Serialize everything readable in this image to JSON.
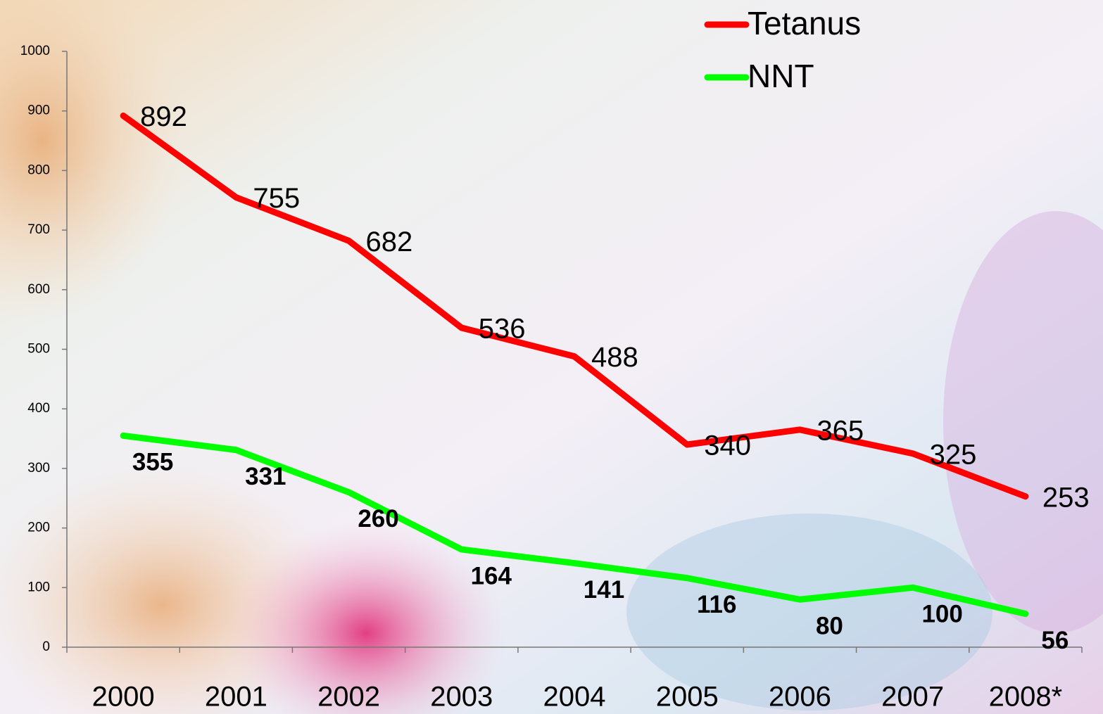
{
  "chart_data": {
    "type": "line",
    "categories": [
      "2000",
      "2001",
      "2002",
      "2003",
      "2004",
      "2005",
      "2006",
      "2007",
      "2008*"
    ],
    "series": [
      {
        "name": "Tetanus",
        "color": "#ff0000",
        "values": [
          892,
          755,
          682,
          536,
          488,
          340,
          365,
          325,
          253
        ]
      },
      {
        "name": "NNT",
        "color": "#00ff00",
        "values": [
          355,
          331,
          260,
          164,
          141,
          116,
          80,
          100,
          56
        ]
      }
    ],
    "ylim": [
      0,
      1000
    ],
    "yticks": [
      0,
      100,
      200,
      300,
      400,
      500,
      600,
      700,
      800,
      900,
      1000
    ],
    "legend": "top-right"
  }
}
